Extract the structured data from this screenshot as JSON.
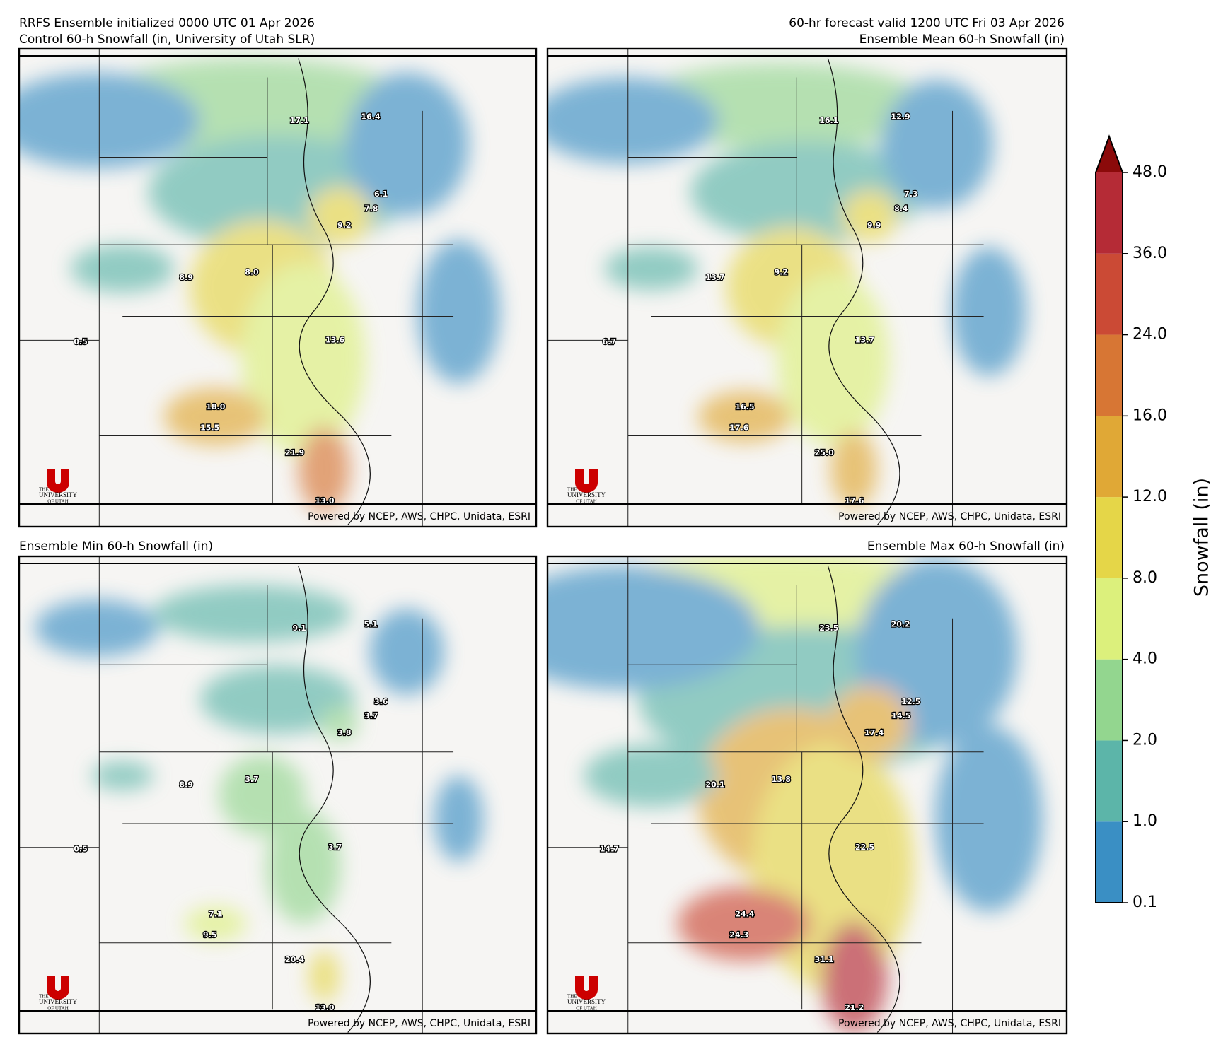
{
  "header": {
    "left": "RRFS Ensemble initialized 0000 UTC 01 Apr 2026",
    "right": "60-hr forecast valid 1200 UTC Fri 03 Apr 2026"
  },
  "panels": [
    {
      "title": "Control 60-h Snowfall (in, University of Utah SLR)",
      "labels": [
        "17.1",
        "16.4",
        "6.1",
        "7.8",
        "9.2",
        "8.9",
        "8.0",
        "0.5",
        "13.6",
        "18.0",
        "15.5",
        "21.9",
        "13.0"
      ]
    },
    {
      "title": "Ensemble Mean 60-h Snowfall (in)",
      "labels": [
        "16.1",
        "12.9",
        "7.3",
        "8.4",
        "9.9",
        "13.7",
        "9.2",
        "6.7",
        "13.7",
        "16.5",
        "17.6",
        "25.0",
        "17.6"
      ]
    },
    {
      "title": "Ensemble Min 60-h Snowfall (in)",
      "labels": [
        "9.1",
        "5.1",
        "3.6",
        "3.7",
        "3.8",
        "8.9",
        "3.7",
        "0.5",
        "3.7",
        "7.1",
        "9.5",
        "20.4",
        "13.0"
      ]
    },
    {
      "title": "Ensemble Max 60-h Snowfall (in)",
      "labels": [
        "23.5",
        "20.2",
        "12.5",
        "14.5",
        "17.4",
        "20.1",
        "13.8",
        "14.7",
        "22.5",
        "24.4",
        "24.3",
        "31.1",
        "21.2"
      ]
    }
  ],
  "footer": "Powered by NCEP, AWS, CHPC, Unidata, ESRI",
  "logo": {
    "top": "THE",
    "middle": "UNIVERSITY",
    "bottom": "OF UTAH"
  },
  "colorbar": {
    "label": "Snowfall (in)",
    "levels": [
      "0.1",
      "1.0",
      "2.0",
      "4.0",
      "8.0",
      "12.0",
      "16.0",
      "24.0",
      "36.0",
      "48.0"
    ],
    "colors": [
      "#3a8fc4",
      "#5cb5a9",
      "#93d68f",
      "#dcf07c",
      "#e5d648",
      "#e0a836",
      "#d77634",
      "#cb4a35",
      "#b52b36"
    ],
    "extend_color": "#8b0a0a"
  }
}
